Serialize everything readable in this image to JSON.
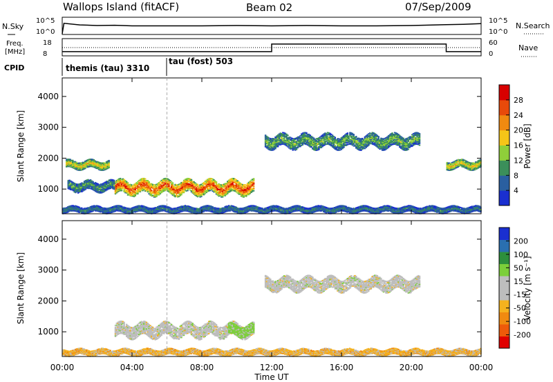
{
  "header": {
    "title": "Wallops Island (fitACF)",
    "beam": "Beam 02",
    "date": "07/Sep/2009"
  },
  "noise_panel": {
    "left_label": "N.Sky",
    "right_label": "N.Search",
    "left_ticks": [
      "10^5",
      "10^0"
    ],
    "right_ticks": [
      "10^5",
      "10^0"
    ]
  },
  "freq_panel": {
    "left_label_line1": "Freq.",
    "left_label_line2": "[MHz]",
    "right_label": "Nave",
    "left_ticks": [
      "18",
      "8"
    ],
    "right_ticks": [
      "60",
      "0"
    ]
  },
  "cpid_panel": {
    "label": "CPID",
    "modes": [
      {
        "name": "themis (tau) 3310",
        "start_hour": 0
      },
      {
        "name": "tau (fost) 503",
        "start_hour": 6
      }
    ]
  },
  "colors": {
    "power": [
      "#1a2fd0",
      "#2a5fa0",
      "#3b8f5a",
      "#8fcf3a",
      "#f5c518",
      "#f08a10",
      "#e84a0a",
      "#d80000"
    ],
    "velocity": [
      "#1a2fd0",
      "#2a6fb0",
      "#2d8f3c",
      "#7ccf3a",
      "#bdbdbd",
      "#bdbdbd",
      "#f5b21e",
      "#f08a10",
      "#ee5a0a",
      "#e00000"
    ]
  },
  "chart_data": [
    {
      "type": "line",
      "panel": "noise",
      "series": [
        {
          "name": "N.Sky",
          "style": "solid",
          "x": [
            0,
            0.1,
            1,
            2,
            3,
            4,
            5,
            6,
            8,
            10,
            12,
            14,
            16,
            18,
            20,
            22,
            23,
            24
          ],
          "y": [
            0,
            3.3,
            2.8,
            2.6,
            2.7,
            2.5,
            2.5,
            2.5,
            2.5,
            2.6,
            2.5,
            2.6,
            2.5,
            2.5,
            2.6,
            2.9,
            3.0,
            3.2
          ]
        },
        {
          "name": "N.Search",
          "style": "dotted",
          "x": [],
          "y": []
        }
      ]
    },
    {
      "type": "line",
      "panel": "frequency",
      "series": [
        {
          "name": "Freq.",
          "style": "solid",
          "x": [
            0,
            12,
            12,
            22,
            22,
            24
          ],
          "y": [
            10.3,
            10.3,
            15.3,
            15.3,
            10.3,
            10.3
          ]
        },
        {
          "name": "Nave",
          "style": "dotted",
          "x": [
            0,
            24
          ],
          "y": [
            30,
            30
          ]
        }
      ]
    },
    {
      "type": "heatmap",
      "panel": "power",
      "xlabel": "",
      "ylabel": "Slant Range [km]",
      "xlim": [
        0,
        24
      ],
      "ylim": [
        200,
        4600
      ],
      "yticks": [
        "1000",
        "2000",
        "3000",
        "4000"
      ],
      "colorbar": {
        "label": "Power [dB]",
        "ticks": [
          "4",
          "8",
          "12",
          "16",
          "20",
          "24",
          "28"
        ],
        "range": [
          0,
          30
        ]
      },
      "regions": [
        {
          "t0": 3.0,
          "t1": 11.0,
          "r_center": 1050,
          "r_width": 420,
          "level": 26
        },
        {
          "t0": 0.2,
          "t1": 2.7,
          "r_center": 1800,
          "r_width": 250,
          "level": 18
        },
        {
          "t0": 0.3,
          "t1": 3.0,
          "r_center": 1100,
          "r_width": 300,
          "level": 10
        },
        {
          "t0": 11.6,
          "t1": 20.5,
          "r_center": 2550,
          "r_width": 400,
          "level": 12
        },
        {
          "t0": 22.0,
          "t1": 24.0,
          "r_center": 1800,
          "r_width": 250,
          "level": 18
        },
        {
          "t0": 0.0,
          "t1": 24.0,
          "r_center": 350,
          "r_width": 180,
          "level": 8
        }
      ]
    },
    {
      "type": "heatmap",
      "panel": "velocity",
      "xlabel": "Time UT",
      "ylabel": "Slant Range [km]",
      "xlim": [
        0,
        24
      ],
      "ylim": [
        200,
        4600
      ],
      "xticks": [
        "00:00",
        "04:00",
        "08:00",
        "12:00",
        "16:00",
        "20:00",
        "00:00"
      ],
      "yticks": [
        "1000",
        "2000",
        "3000",
        "4000"
      ],
      "colorbar": {
        "label": "Velocity [m s⁻¹]",
        "ticks": [
          "200",
          "100",
          "50",
          "15",
          "-15",
          "-50",
          "-100",
          "-200"
        ]
      },
      "regions": [
        {
          "t0": 3.0,
          "t1": 11.0,
          "r_center": 1050,
          "r_width": 420,
          "level": "-15..15"
        },
        {
          "t0": 9.5,
          "t1": 11.0,
          "r_center": 1050,
          "r_width": 350,
          "level": "15..50"
        },
        {
          "t0": 11.6,
          "t1": 20.5,
          "r_center": 2550,
          "r_width": 400,
          "level": "-15..15"
        },
        {
          "t0": 0.0,
          "t1": 24.0,
          "r_center": 350,
          "r_width": 180,
          "level": "-50..-15"
        }
      ]
    }
  ]
}
